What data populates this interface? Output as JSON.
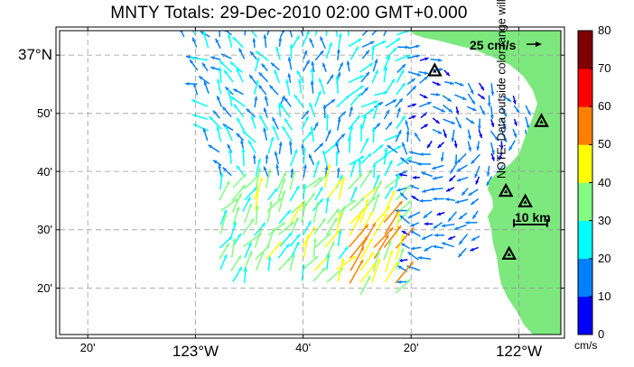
{
  "title": "MNTY Totals: 29-Dec-2010 02:00 GMT+0.000",
  "map": {
    "lon_range": [
      -123.42,
      -121.87
    ],
    "lat_range": [
      36.2,
      37.07
    ],
    "lon_ticks": [
      {
        "value": -123.333,
        "label": "20'",
        "major": false
      },
      {
        "value": -123.0,
        "label": "123°W",
        "major": true
      },
      {
        "value": -122.667,
        "label": "40'",
        "major": false
      },
      {
        "value": -122.333,
        "label": "20'",
        "major": false
      },
      {
        "value": -122.0,
        "label": "122°W",
        "major": true
      }
    ],
    "lat_ticks": [
      {
        "value": 37.0,
        "label": "37°N",
        "major": true
      },
      {
        "value": 36.833,
        "label": "50'",
        "major": false
      },
      {
        "value": 36.667,
        "label": "40'",
        "major": false
      },
      {
        "value": 36.5,
        "label": "30'",
        "major": false
      },
      {
        "value": 36.333,
        "label": "20'",
        "major": false
      }
    ],
    "grid": true,
    "land_color": "#7de87d",
    "sites": [
      {
        "lon": -122.26,
        "lat": 36.955
      },
      {
        "lon": -121.93,
        "lat": 36.81
      },
      {
        "lon": -122.04,
        "lat": 36.61
      },
      {
        "lon": -121.98,
        "lat": 36.58
      },
      {
        "lon": -122.03,
        "lat": 36.43
      }
    ]
  },
  "reference_arrow": {
    "label": "25 cm/s",
    "speed_cm_s": 25
  },
  "scale_bar": {
    "label": "10 km",
    "km": 10
  },
  "colorbar": {
    "unit": "cm/s",
    "note": "NOTE: Data outside color range will be saturated.",
    "ticks": [
      "0",
      "10",
      "20",
      "30",
      "40",
      "50",
      "60",
      "70",
      "80"
    ],
    "range": [
      0,
      80
    ],
    "colors": [
      "#0000ff",
      "#0080ff",
      "#00ffff",
      "#80ff80",
      "#ffff00",
      "#ff8000",
      "#ff0000",
      "#800000"
    ]
  }
}
